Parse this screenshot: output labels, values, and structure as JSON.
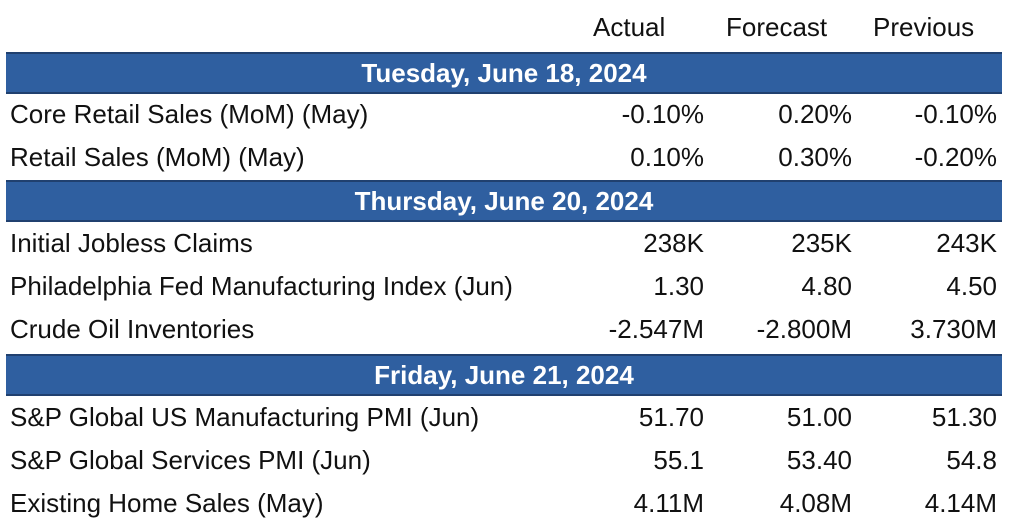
{
  "columns": {
    "actual": "Actual",
    "forecast": "Forecast",
    "previous": "Previous"
  },
  "sections": [
    {
      "date": "Tuesday, June 18, 2024",
      "rows": [
        {
          "name": "Core Retail Sales (MoM) (May)",
          "actual": "-0.10%",
          "forecast": "0.20%",
          "previous": "-0.10%"
        },
        {
          "name": "Retail Sales (MoM) (May)",
          "actual": "0.10%",
          "forecast": "0.30%",
          "previous": "-0.20%"
        }
      ]
    },
    {
      "date": "Thursday, June 20, 2024",
      "rows": [
        {
          "name": "Initial Jobless Claims",
          "actual": "238K",
          "forecast": "235K",
          "previous": "243K"
        },
        {
          "name": "Philadelphia Fed Manufacturing Index (Jun)",
          "actual": "1.30",
          "forecast": "4.80",
          "previous": "4.50"
        },
        {
          "name": "Crude Oil Inventories",
          "actual": "-2.547M",
          "forecast": "-2.800M",
          "previous": "3.730M"
        }
      ]
    },
    {
      "date": "Friday, June 21, 2024",
      "rows": [
        {
          "name": "S&P Global US Manufacturing PMI (Jun)",
          "actual": "51.70",
          "forecast": "51.00",
          "previous": "51.30"
        },
        {
          "name": "S&P Global Services PMI (Jun)",
          "actual": "55.1",
          "forecast": "53.40",
          "previous": "54.8"
        },
        {
          "name": "Existing Home Sales (May)",
          "actual": "4.11M",
          "forecast": "4.08M",
          "previous": "4.14M"
        }
      ]
    }
  ]
}
